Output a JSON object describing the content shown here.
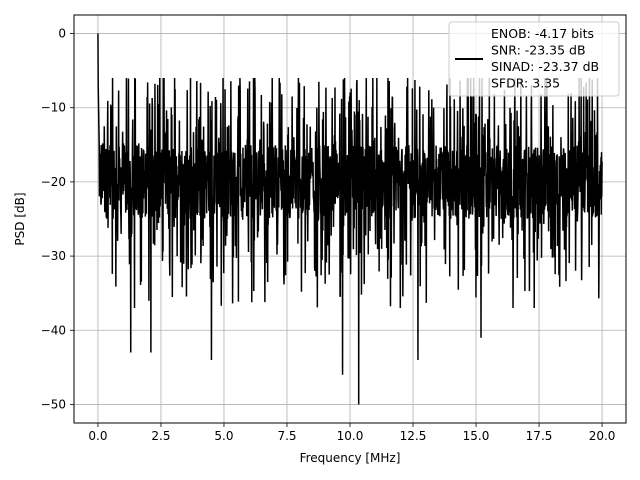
{
  "chart_data": {
    "type": "line",
    "title": "",
    "xlabel": "Frequency [MHz]",
    "ylabel": "PSD [dB]",
    "xlim": [
      -0.95,
      20.95
    ],
    "ylim": [
      -52.5,
      2.5
    ],
    "xticks": [
      0.0,
      2.5,
      5.0,
      7.5,
      10.0,
      12.5,
      15.0,
      17.5,
      20.0
    ],
    "xtick_labels": [
      "0.0",
      "2.5",
      "5.0",
      "7.5",
      "10.0",
      "12.5",
      "15.0",
      "17.5",
      "20.0"
    ],
    "yticks": [
      0,
      -10,
      -20,
      -30,
      -40,
      -50
    ],
    "ytick_labels": [
      "0",
      "−10",
      "−20",
      "−30",
      "−40",
      "−50"
    ],
    "grid": true,
    "legend_position": "top-right",
    "legend_lines": [
      "ENOB: -4.17 bits",
      "SNR: -23.35 dB",
      "SINAD: -23.37 dB",
      "SFDR: 3.35"
    ],
    "series_color": "#000000",
    "series": [
      {
        "x_range": [
          0,
          20
        ],
        "n_points": 2000,
        "peak": {
          "x": 0.0,
          "y": 0
        },
        "noise_floor_mean_db": -20,
        "noise_upper_envelope_db": -6,
        "noise_lower_envelope_db": -35,
        "notable_minima": [
          {
            "x": 1.3,
            "y": -43
          },
          {
            "x": 2.1,
            "y": -43
          },
          {
            "x": 4.5,
            "y": -44
          },
          {
            "x": 9.7,
            "y": -46
          },
          {
            "x": 10.35,
            "y": -50
          },
          {
            "x": 12.7,
            "y": -44
          },
          {
            "x": 15.2,
            "y": -41
          }
        ]
      }
    ]
  }
}
